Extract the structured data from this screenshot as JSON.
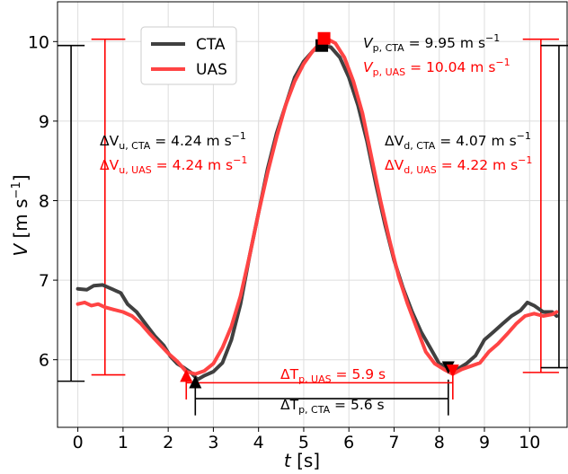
{
  "chart_data": {
    "type": "line",
    "xlabel": "t [s]",
    "ylabel": "V [m s-1]",
    "xlim": [
      -0.45,
      10.85
    ],
    "ylim": [
      5.15,
      10.5
    ],
    "x_ticks": [
      "0",
      "1",
      "2",
      "3",
      "4",
      "5",
      "6",
      "7",
      "8",
      "9",
      "10"
    ],
    "y_ticks": [
      "6",
      "7",
      "8",
      "9",
      "10"
    ],
    "grid": true,
    "legend_placement": "upper-left",
    "colors": {
      "cta": "#404040",
      "uas": "#ff4444",
      "black": "#000000",
      "red": "#ff0000"
    },
    "series": [
      {
        "name": "CTA",
        "color": "#404040",
        "points": [
          [
            0,
            6.89
          ],
          [
            0.2,
            6.88
          ],
          [
            0.35,
            6.93
          ],
          [
            0.55,
            6.94
          ],
          [
            0.75,
            6.89
          ],
          [
            0.95,
            6.84
          ],
          [
            1.1,
            6.7
          ],
          [
            1.3,
            6.6
          ],
          [
            1.5,
            6.45
          ],
          [
            1.7,
            6.3
          ],
          [
            1.9,
            6.18
          ],
          [
            2.05,
            6.04
          ],
          [
            2.2,
            5.95
          ],
          [
            2.35,
            5.9
          ],
          [
            2.5,
            5.84
          ],
          [
            2.65,
            5.75
          ],
          [
            2.8,
            5.8
          ],
          [
            3.0,
            5.85
          ],
          [
            3.2,
            5.96
          ],
          [
            3.4,
            6.25
          ],
          [
            3.6,
            6.7
          ],
          [
            3.8,
            7.3
          ],
          [
            4.0,
            7.85
          ],
          [
            4.2,
            8.4
          ],
          [
            4.4,
            8.85
          ],
          [
            4.6,
            9.2
          ],
          [
            4.8,
            9.55
          ],
          [
            5.0,
            9.75
          ],
          [
            5.2,
            9.88
          ],
          [
            5.4,
            9.95
          ],
          [
            5.6,
            9.93
          ],
          [
            5.8,
            9.8
          ],
          [
            6.0,
            9.55
          ],
          [
            6.2,
            9.2
          ],
          [
            6.4,
            8.75
          ],
          [
            6.6,
            8.2
          ],
          [
            6.8,
            7.7
          ],
          [
            7.0,
            7.25
          ],
          [
            7.2,
            6.9
          ],
          [
            7.4,
            6.6
          ],
          [
            7.6,
            6.35
          ],
          [
            7.8,
            6.15
          ],
          [
            8.0,
            5.95
          ],
          [
            8.2,
            5.9
          ],
          [
            8.4,
            5.88
          ],
          [
            8.6,
            5.95
          ],
          [
            8.8,
            6.05
          ],
          [
            9.0,
            6.25
          ],
          [
            9.2,
            6.35
          ],
          [
            9.4,
            6.45
          ],
          [
            9.6,
            6.55
          ],
          [
            9.8,
            6.62
          ],
          [
            9.95,
            6.72
          ],
          [
            10.1,
            6.68
          ],
          [
            10.3,
            6.6
          ],
          [
            10.5,
            6.6
          ],
          [
            10.6,
            6.55
          ]
        ]
      },
      {
        "name": "UAS",
        "color": "#ff4444",
        "points": [
          [
            0,
            6.7
          ],
          [
            0.15,
            6.72
          ],
          [
            0.3,
            6.68
          ],
          [
            0.45,
            6.7
          ],
          [
            0.6,
            6.66
          ],
          [
            0.8,
            6.63
          ],
          [
            1.0,
            6.6
          ],
          [
            1.2,
            6.55
          ],
          [
            1.4,
            6.45
          ],
          [
            1.6,
            6.32
          ],
          [
            1.8,
            6.2
          ],
          [
            2.0,
            6.08
          ],
          [
            2.2,
            5.98
          ],
          [
            2.4,
            5.85
          ],
          [
            2.6,
            5.82
          ],
          [
            2.8,
            5.86
          ],
          [
            3.0,
            5.95
          ],
          [
            3.2,
            6.15
          ],
          [
            3.4,
            6.42
          ],
          [
            3.6,
            6.8
          ],
          [
            3.8,
            7.3
          ],
          [
            4.0,
            7.85
          ],
          [
            4.2,
            8.35
          ],
          [
            4.4,
            8.8
          ],
          [
            4.6,
            9.2
          ],
          [
            4.8,
            9.5
          ],
          [
            5.0,
            9.72
          ],
          [
            5.2,
            9.88
          ],
          [
            5.4,
            10.0
          ],
          [
            5.5,
            10.04
          ],
          [
            5.7,
            9.98
          ],
          [
            5.9,
            9.8
          ],
          [
            6.1,
            9.5
          ],
          [
            6.3,
            9.1
          ],
          [
            6.5,
            8.55
          ],
          [
            6.7,
            8.0
          ],
          [
            6.9,
            7.5
          ],
          [
            7.1,
            7.05
          ],
          [
            7.3,
            6.7
          ],
          [
            7.5,
            6.4
          ],
          [
            7.7,
            6.1
          ],
          [
            7.9,
            5.95
          ],
          [
            8.1,
            5.88
          ],
          [
            8.3,
            5.82
          ],
          [
            8.5,
            5.88
          ],
          [
            8.7,
            5.92
          ],
          [
            8.9,
            5.96
          ],
          [
            9.1,
            6.1
          ],
          [
            9.3,
            6.2
          ],
          [
            9.5,
            6.32
          ],
          [
            9.7,
            6.45
          ],
          [
            9.9,
            6.55
          ],
          [
            10.1,
            6.58
          ],
          [
            10.3,
            6.55
          ],
          [
            10.5,
            6.57
          ],
          [
            10.6,
            6.6
          ]
        ]
      }
    ],
    "markers": [
      {
        "name": "CTA peak",
        "shape": "square",
        "color": "#000000",
        "x": 5.4,
        "y": 9.95
      },
      {
        "name": "UAS peak",
        "shape": "square",
        "color": "#ff0000",
        "x": 5.45,
        "y": 10.04
      },
      {
        "name": "CTA up-min",
        "shape": "triangle-up",
        "color": "#000000",
        "x": 2.6,
        "y": 5.72
      },
      {
        "name": "UAS up-min",
        "shape": "triangle-up",
        "color": "#ff0000",
        "x": 2.4,
        "y": 5.8
      },
      {
        "name": "CTA down-min",
        "shape": "triangle-down",
        "color": "#000000",
        "x": 8.2,
        "y": 5.9
      },
      {
        "name": "UAS down-min",
        "shape": "triangle-down",
        "color": "#ff0000",
        "x": 8.3,
        "y": 5.86
      }
    ],
    "range_bars": [
      {
        "color": "#000000",
        "x": -0.15,
        "y_low": 5.73,
        "y_high": 9.95,
        "cap_left": -0.45,
        "cap_right": 0.15
      },
      {
        "color": "#ff0000",
        "x": 0.6,
        "y_low": 5.81,
        "y_high": 10.03,
        "cap_left": 0.3,
        "cap_right": 1.05
      },
      {
        "color": "#ff0000",
        "x": 10.25,
        "y_low": 5.84,
        "y_high": 10.03,
        "cap_left": 9.85,
        "cap_right": 10.65
      },
      {
        "color": "#000000",
        "x": 10.65,
        "y_low": 5.9,
        "y_high": 9.95,
        "cap_left": 10.25,
        "cap_right": 10.85
      }
    ],
    "time_spans": [
      {
        "color": "#000000",
        "x_start": 2.6,
        "x_end": 8.2,
        "y": 5.51,
        "tick_top": 5.75,
        "tick_bottom": 5.3
      },
      {
        "color": "#ff0000",
        "x_start": 2.4,
        "x_end": 8.3,
        "y": 5.71,
        "tick_top": 5.85,
        "tick_bottom": 5.5
      }
    ]
  },
  "legend": {
    "cta": "CTA",
    "uas": "UAS"
  },
  "annotations": {
    "vp_cta": {
      "sym": "V",
      "sub": "p, CTA",
      "value": " = 9.95 m s",
      "exp": "−1"
    },
    "vp_uas": {
      "sym": "V",
      "sub": "p, UAS",
      "value": " = 10.04 m s",
      "exp": "−1"
    },
    "dvu_cta": {
      "sym": "ΔV",
      "sub": "u, CTA",
      "value": " = 4.24 m s",
      "exp": "−1"
    },
    "dvu_uas": {
      "sym": "ΔV",
      "sub": "u, UAS",
      "value": " = 4.24 m s",
      "exp": "−1"
    },
    "dvd_cta": {
      "sym": "ΔV",
      "sub": "d, CTA",
      "value": " = 4.07 m s",
      "exp": "−1"
    },
    "dvd_uas": {
      "sym": "ΔV",
      "sub": "d, UAS",
      "value": " = 4.22 m s",
      "exp": "−1"
    },
    "dtp_uas": {
      "sym": "ΔT",
      "sub": "p, UAS",
      "value": " = 5.9 s"
    },
    "dtp_cta": {
      "sym": "ΔT",
      "sub": "p, CTA",
      "value": " = 5.6 s"
    }
  },
  "axis_titles": {
    "x_sym": "t",
    "x_unit": " [s]",
    "y_sym": "V",
    "y_unit": " [m s",
    "y_exp": "−1",
    "y_close": "]"
  }
}
